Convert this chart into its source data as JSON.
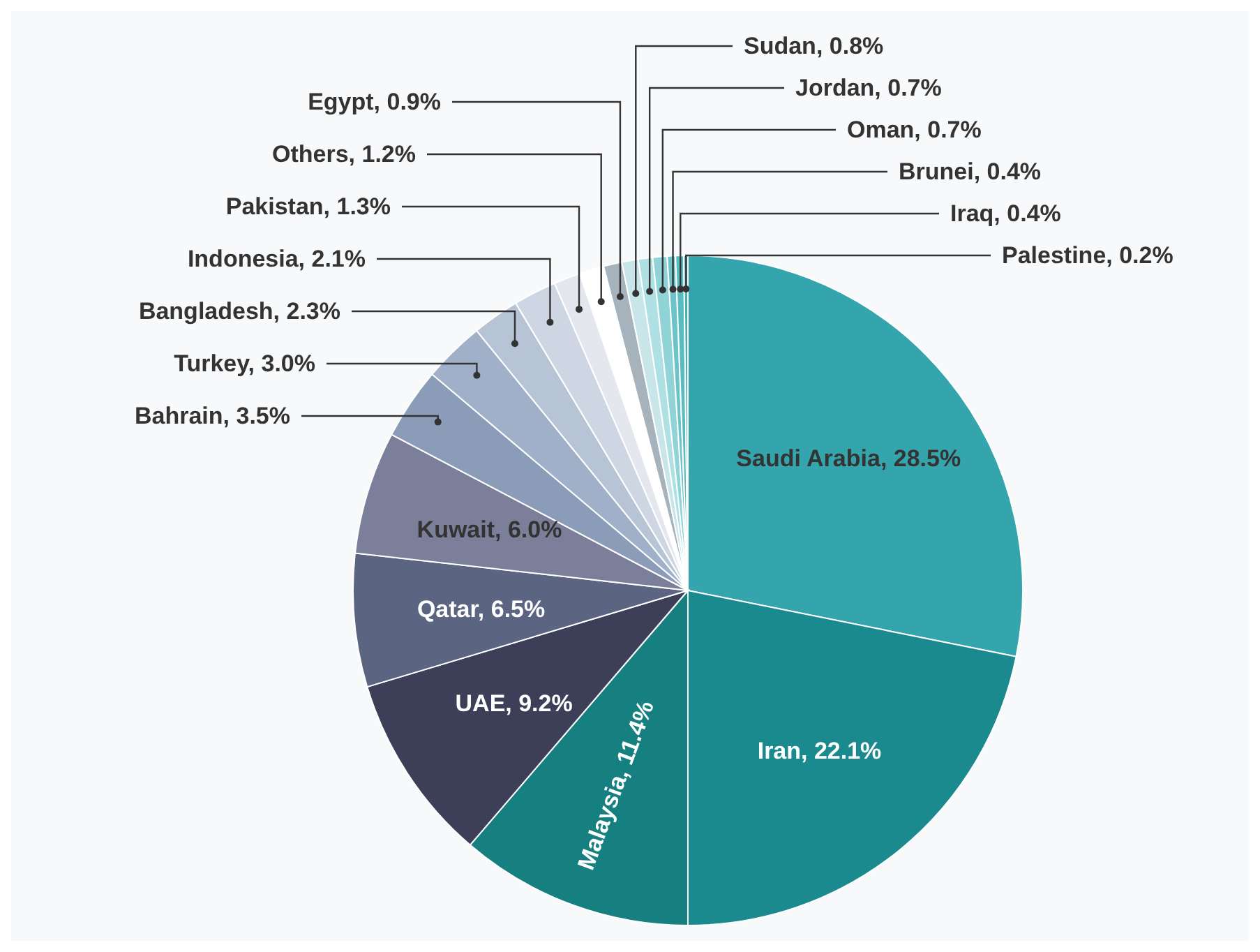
{
  "chart_data": {
    "type": "pie",
    "categories": [
      "Saudi Arabia",
      "Iran",
      "Malaysia",
      "UAE",
      "Qatar",
      "Kuwait",
      "Bahrain",
      "Turkey",
      "Bangladesh",
      "Indonesia",
      "Pakistan",
      "Others",
      "Egypt",
      "Sudan",
      "Jordan",
      "Oman",
      "Brunei",
      "Iraq",
      "Palestine"
    ],
    "values": [
      28.5,
      22.1,
      11.4,
      9.2,
      6.5,
      6.0,
      3.5,
      3.0,
      2.3,
      2.1,
      1.3,
      1.2,
      0.9,
      0.8,
      0.7,
      0.7,
      0.4,
      0.4,
      0.2
    ],
    "value_labels": [
      "28.5%",
      "22.1%",
      "11.4%",
      "9.2%",
      "6.5%",
      "6.0%",
      "3.5%",
      "3.0%",
      "2.3%",
      "2.1%",
      "1.3%",
      "1.2%",
      "0.9%",
      "0.8%",
      "0.7%",
      "0.7%",
      "0.4%",
      "0.4%",
      "0.2%"
    ],
    "colors": [
      "#35a5ad",
      "#1a8a8e",
      "#168080",
      "#3d3f58",
      "#5b6480",
      "#7b7f9a",
      "#8a9cb8",
      "#9fb0c8",
      "#b7c4d6",
      "#cdd6e2",
      "#e4e8ee",
      "#ffffff",
      "#a6b2bc",
      "#c8e6ea",
      "#aee0e4",
      "#90d4d8",
      "#6cc4c8",
      "#58bcc0",
      "#48b0b4"
    ],
    "legend": false
  }
}
